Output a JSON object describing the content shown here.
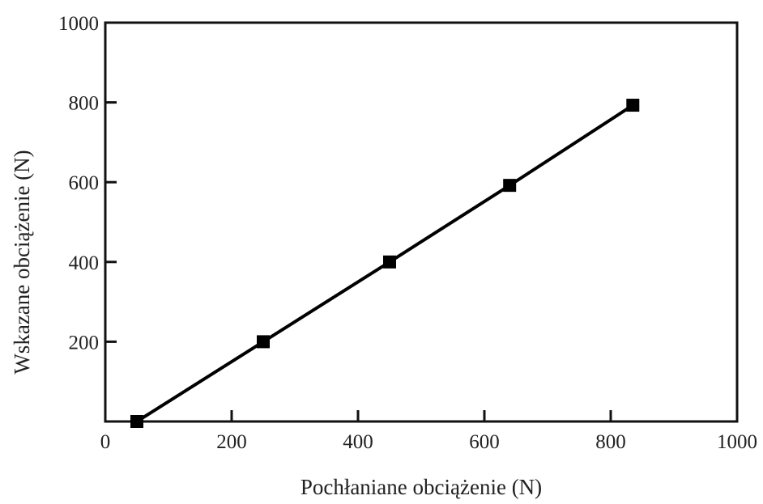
{
  "chart_data": {
    "type": "line",
    "title": "",
    "xlabel": "Pochłaniane obciążenie (N)",
    "ylabel": "Wskazane obciążenie (N)",
    "xlim": [
      0,
      1000
    ],
    "ylim": [
      0,
      1000
    ],
    "x_ticks": [
      0,
      200,
      400,
      600,
      800,
      1000
    ],
    "x_tick_labels": [
      "0",
      "200",
      "400",
      "600",
      "800",
      "1000"
    ],
    "y_ticks": [
      200,
      400,
      600,
      800,
      1000
    ],
    "y_tick_labels": [
      "200",
      "400",
      "600",
      "800",
      "1000"
    ],
    "grid": false,
    "legend": "none",
    "series": [
      {
        "marker": "square",
        "color": "#000000",
        "x": [
          50,
          250,
          450,
          640,
          835
        ],
        "y": [
          0,
          200,
          400,
          592,
          793
        ]
      }
    ]
  }
}
